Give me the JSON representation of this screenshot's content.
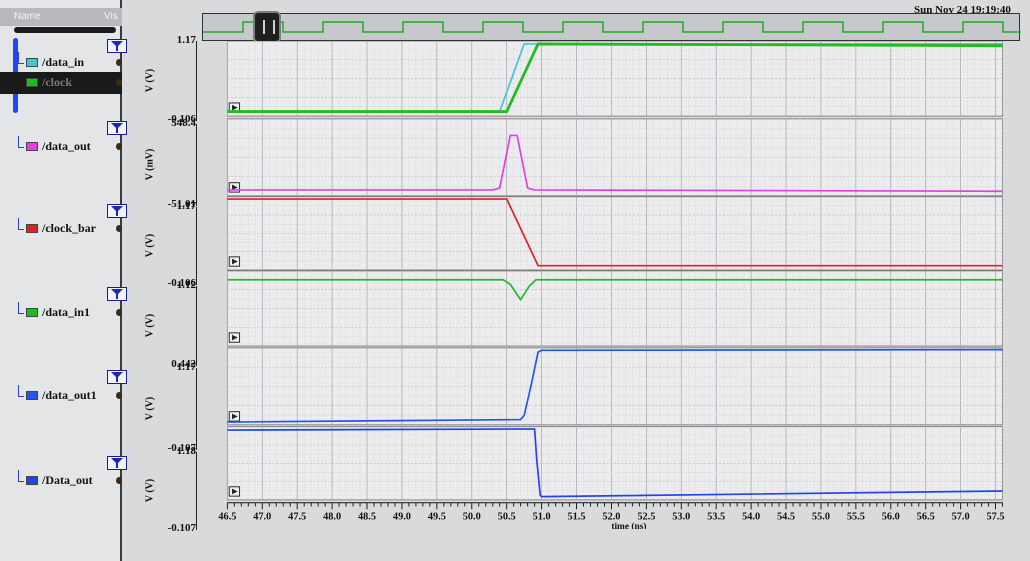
{
  "header": {
    "timestamp": "Sun Nov 24 19:19:40"
  },
  "legend": {
    "columns": {
      "name": "Name",
      "vis": "Vis"
    },
    "signals": [
      {
        "name": "/data_in",
        "color": "#40c8d0",
        "id": "data-in"
      },
      {
        "name": "/clock",
        "color": "#22bb22",
        "id": "clock",
        "selected": true
      },
      {
        "name": "/data_out",
        "color": "#e040e0",
        "id": "data-out"
      },
      {
        "name": "/clock_bar",
        "color": "#dd2222",
        "id": "clock-bar"
      },
      {
        "name": "/data_in1",
        "color": "#22bb22",
        "id": "data-in1"
      },
      {
        "name": "/data_out1",
        "color": "#2255ee",
        "id": "data-out1"
      },
      {
        "name": "/Data_out",
        "color": "#2244ee",
        "id": "data-out-cap"
      }
    ]
  },
  "x_axis": {
    "label": "time (ns)",
    "ticks": [
      "46.5",
      "47.0",
      "47.5",
      "48.0",
      "48.5",
      "49.0",
      "49.5",
      "50.0",
      "50.5",
      "51.0",
      "51.5",
      "52.0",
      "52.5",
      "53.0",
      "53.5",
      "54.0",
      "54.5",
      "55.0",
      "55.5",
      "56.0",
      "56.5",
      "57.0",
      "57.5"
    ]
  },
  "chart_data": [
    {
      "type": "line",
      "ylabel": "V (V)",
      "ylim": [
        -0.106,
        1.17
      ],
      "series": [
        {
          "name": "/data_in",
          "color": "#40c8d0",
          "x": [
            46.5,
            50.4,
            50.75,
            57.6
          ],
          "values": [
            -0.03,
            -0.03,
            1.12,
            1.12
          ]
        },
        {
          "name": "/clock",
          "color": "#22bb22",
          "x": [
            46.5,
            50.5,
            50.95,
            57.6
          ],
          "values": [
            -0.03,
            -0.03,
            1.12,
            1.09
          ]
        }
      ]
    },
    {
      "type": "line",
      "ylabel": "V (mV)",
      "ylim": [
        -51.01,
        548.4
      ],
      "series": [
        {
          "name": "/data_out",
          "color": "#e040e0",
          "x": [
            46.5,
            50.3,
            50.4,
            50.5,
            50.55,
            50.65,
            50.7,
            50.8,
            50.9,
            57.6
          ],
          "values": [
            -5,
            -5,
            10,
            280,
            420,
            420,
            280,
            10,
            -5,
            -15
          ]
        }
      ]
    },
    {
      "type": "line",
      "ylabel": "V (V)",
      "ylim": [
        -0.106,
        1.17
      ],
      "series": [
        {
          "name": "/clock_bar",
          "color": "#dd2222",
          "x": [
            46.5,
            50.5,
            50.95,
            57.6
          ],
          "values": [
            1.13,
            1.13,
            -0.03,
            -0.03
          ]
        }
      ]
    },
    {
      "type": "line",
      "ylabel": "V (V)",
      "ylim": [
        0.442,
        1.12
      ],
      "series": [
        {
          "name": "/data_in1",
          "color": "#22bb22",
          "x": [
            46.5,
            50.45,
            50.55,
            50.7,
            50.82,
            50.92,
            51.05,
            57.6
          ],
          "values": [
            1.04,
            1.04,
            1.0,
            0.86,
            0.98,
            1.04,
            1.04,
            1.04
          ]
        }
      ]
    },
    {
      "type": "line",
      "ylabel": "V (V)",
      "ylim": [
        -0.107,
        1.17
      ],
      "series": [
        {
          "name": "/data_out1",
          "color": "#2255ee",
          "x": [
            46.5,
            50.7,
            50.75,
            50.85,
            50.95,
            51.0,
            57.6
          ],
          "values": [
            -0.06,
            -0.02,
            0.05,
            0.55,
            1.1,
            1.13,
            1.14
          ]
        }
      ]
    },
    {
      "type": "line",
      "ylabel": "V (V)",
      "ylim": [
        -0.107,
        1.18
      ],
      "series": [
        {
          "name": "/Data_out",
          "color": "#2244ee",
          "x": [
            46.5,
            50.9,
            50.93,
            50.98,
            51.0,
            57.6
          ],
          "values": [
            1.12,
            1.14,
            0.6,
            -0.03,
            -0.05,
            0.05
          ]
        }
      ]
    }
  ],
  "panel_ranges": [
    {
      "top": "1.17",
      "bottom": "-0.106"
    },
    {
      "top": "548.4",
      "bottom": "-51.01"
    },
    {
      "top": "1.17",
      "bottom": "-0.106"
    },
    {
      "top": "1.12",
      "bottom": "0.442"
    },
    {
      "top": "1.17",
      "bottom": "-0.107"
    },
    {
      "top": "1.18",
      "bottom": "-0.107"
    }
  ]
}
